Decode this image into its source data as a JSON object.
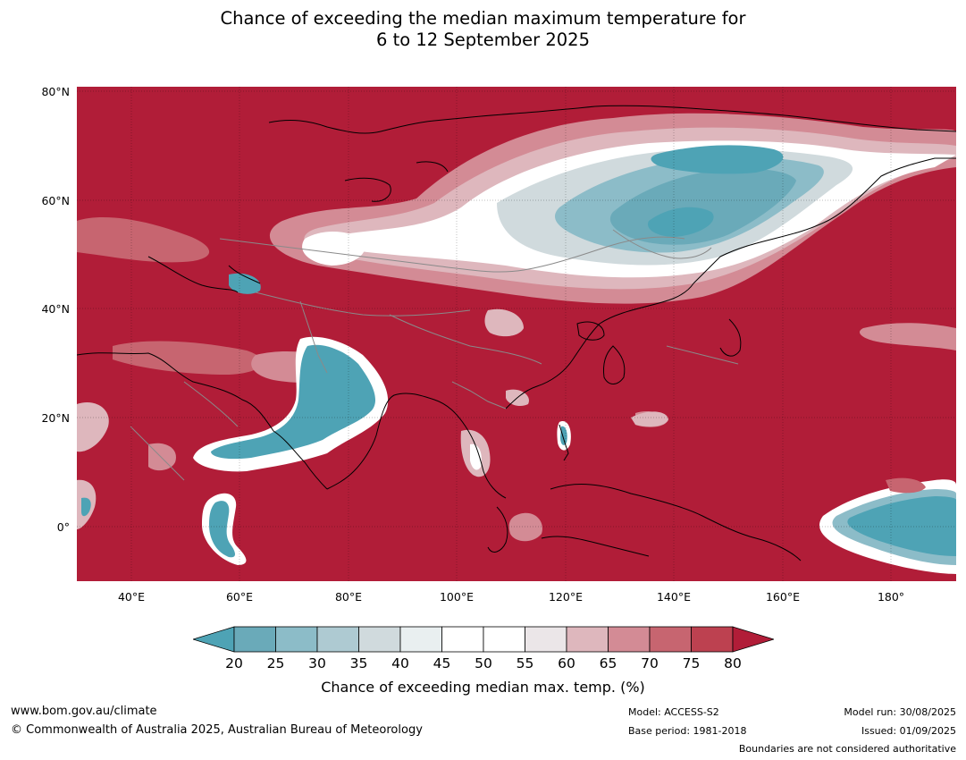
{
  "title": {
    "line1": "Chance of exceeding the median maximum temperature for",
    "line2": "6 to 12 September 2025"
  },
  "axes": {
    "lat_labels": [
      "80°N",
      "60°N",
      "40°N",
      "20°N",
      "0°"
    ],
    "lon_labels": [
      "40°E",
      "60°E",
      "80°E",
      "100°E",
      "120°E",
      "140°E",
      "160°E",
      "180°"
    ],
    "lon_range": [
      30,
      192
    ],
    "lat_range": [
      -10,
      81
    ]
  },
  "colorbar": {
    "ticks": [
      "20",
      "25",
      "30",
      "35",
      "40",
      "45",
      "50",
      "55",
      "60",
      "65",
      "70",
      "75",
      "80"
    ],
    "label": "Chance of exceeding median max. temp. (%)",
    "colors": {
      "below_20": "#4ea3b5",
      "20_25": "#6aaab9",
      "25_30": "#8cbcc8",
      "30_35": "#aecad2",
      "35_40": "#d0dadd",
      "40_45": "#e9eff0",
      "45_50": "#ffffff",
      "50_55": "#ffffff",
      "55_60": "#ebe6e8",
      "60_65": "#deb7bd",
      "65_70": "#d38b95",
      "70_75": "#c76570",
      "75_80": "#bd4150",
      "above_80": "#b11d38"
    }
  },
  "footer": {
    "website": "www.bom.gov.au/climate",
    "copyright": "© Commonwealth of Australia 2025, Australian Bureau of Meteorology",
    "model": "Model: ACCESS-S2",
    "base_period": "Base period: 1981-2018",
    "model_run": "Model run: 30/08/2025",
    "issued": "Issued: 01/09/2025",
    "boundaries": "Boundaries are not considered authoritative"
  }
}
